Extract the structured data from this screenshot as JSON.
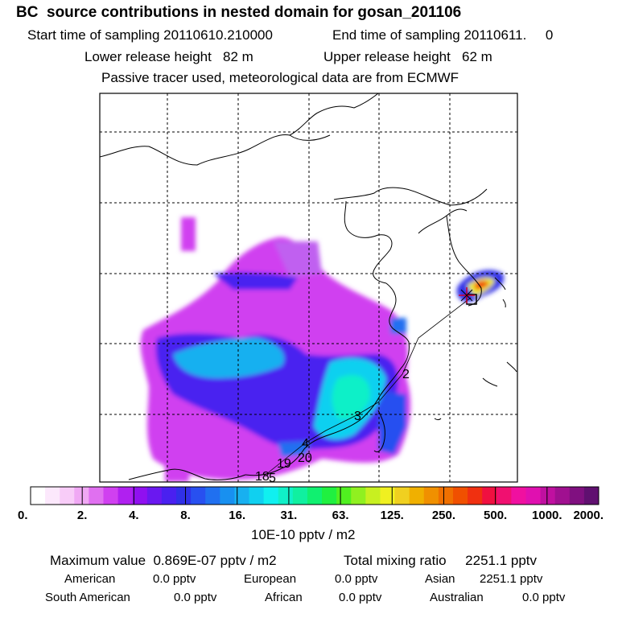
{
  "header": {
    "title": "BC  source contributions in nested domain for gosan_201106",
    "start_time": "Start time of sampling 20110610.210000",
    "end_time": "End time of sampling 20110611.     0",
    "lower_height": "Lower release height   82 m",
    "upper_height": "Upper release height   62 m",
    "tracer_note": "Passive tracer used, meteorological data are from ECMWF"
  },
  "map": {
    "day_markers": [
      "2",
      "3",
      "4",
      "19",
      "20",
      "18",
      "5"
    ],
    "colors": {
      "coast": "#000000",
      "grid": "#000000",
      "receptor": "#cc0033"
    }
  },
  "chart_data": {
    "type": "heatmap",
    "colorbar": {
      "tick_labels": [
        "0.",
        "2.",
        "4.",
        "8.",
        "16.",
        "31.",
        "63.",
        "125.",
        "250.",
        "500.",
        "1000.",
        "2000."
      ],
      "tick_values": [
        0,
        2,
        4,
        8,
        16,
        31,
        63,
        125,
        250,
        500,
        1000,
        2000
      ],
      "colors": [
        "#ffffff",
        "#fce8fc",
        "#f8ccf8",
        "#f0a8f4",
        "#e070f0",
        "#d040f0",
        "#b020f0",
        "#9010f0",
        "#6a18f0",
        "#4a20f0",
        "#3030e8",
        "#2850f0",
        "#2070f0",
        "#1890f0",
        "#18b0f0",
        "#10d0f0",
        "#10f0f0",
        "#10f0c8",
        "#10f0a0",
        "#10f070",
        "#20f040",
        "#50f020",
        "#90f020",
        "#c8f020",
        "#f0f020",
        "#f0d020",
        "#f0b000",
        "#f09000",
        "#f07000",
        "#f05000",
        "#f03010",
        "#f01040",
        "#f01070",
        "#f010a0",
        "#e010b0",
        "#c010a0",
        "#a01090",
        "#801080",
        "#601070"
      ],
      "units_label": "10E-10 pptv / m2"
    }
  },
  "summary": {
    "max_value": "Maximum value  0.869E-07 pptv / m2",
    "total_mixing": "Total mixing ratio     2251.1 pptv",
    "regions": [
      {
        "name": "American",
        "value": "0.0 pptv"
      },
      {
        "name": "European",
        "value": "0.0 pptv"
      },
      {
        "name": "Asian",
        "value": "2251.1 pptv"
      },
      {
        "name": "South American",
        "value": "0.0 pptv"
      },
      {
        "name": "African",
        "value": "0.0 pptv"
      },
      {
        "name": "Australian",
        "value": "0.0 pptv"
      }
    ]
  }
}
